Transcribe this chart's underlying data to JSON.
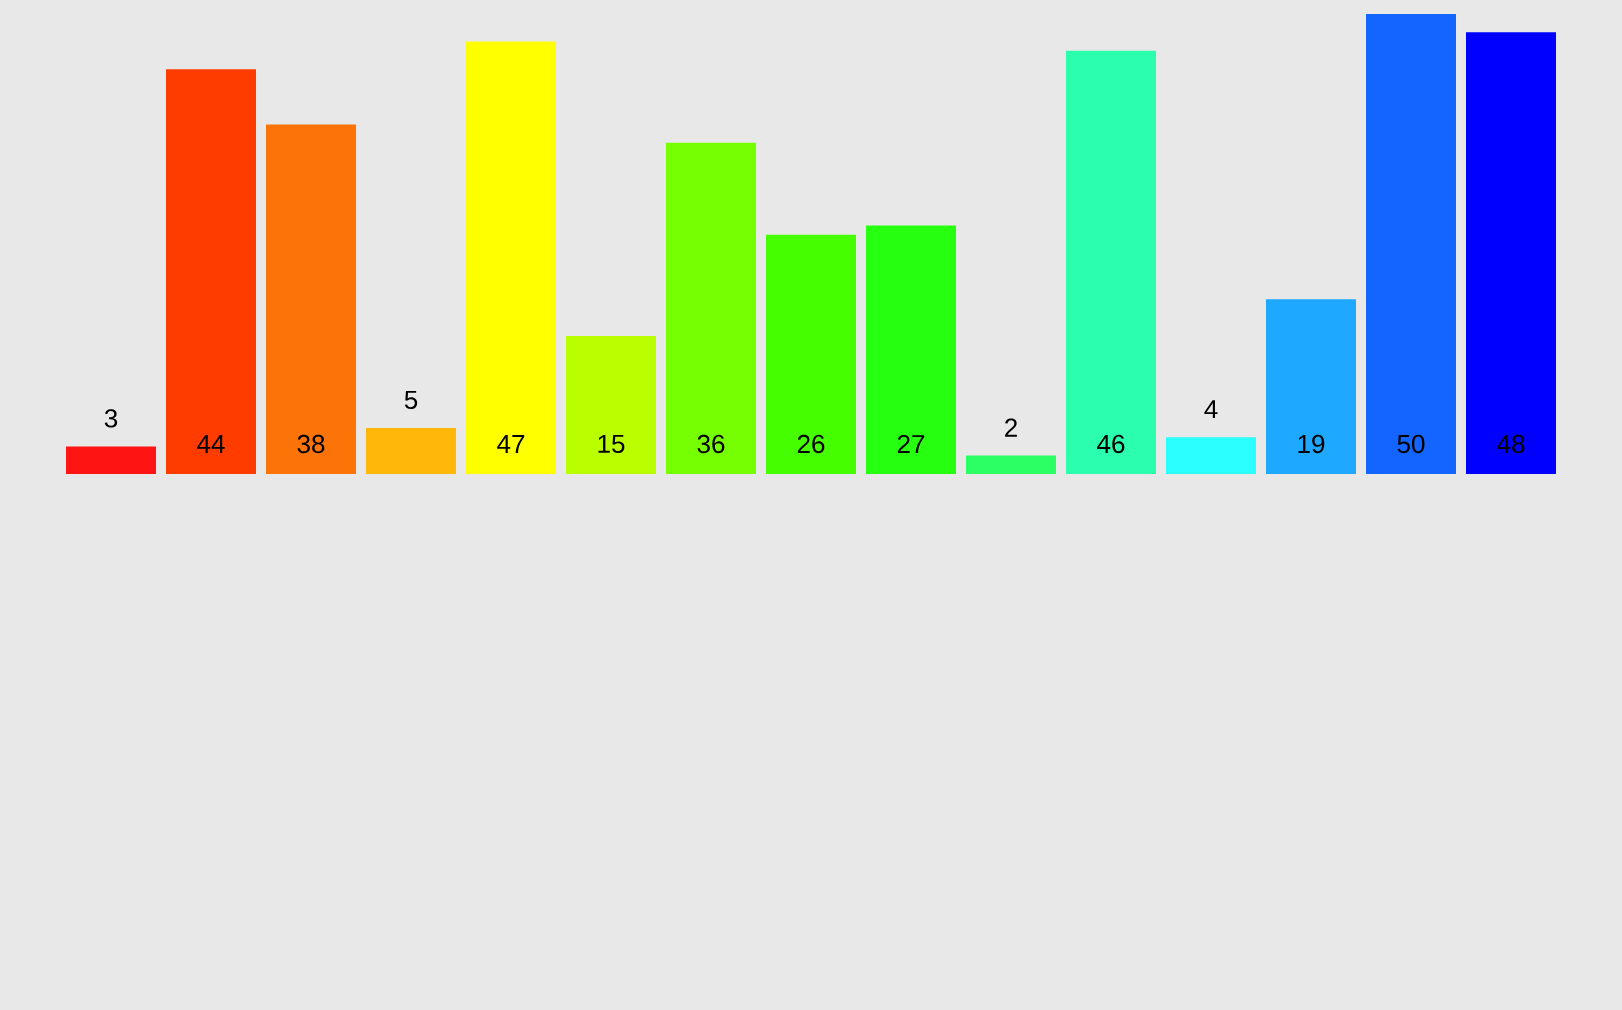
{
  "chart_data": {
    "type": "bar",
    "categories": [
      null,
      null,
      null,
      null,
      null,
      null,
      null,
      null,
      null,
      null,
      null,
      null,
      null,
      null,
      null
    ],
    "values": [
      3,
      44,
      38,
      5,
      47,
      15,
      36,
      26,
      27,
      2,
      46,
      4,
      19,
      50,
      48
    ],
    "colors": [
      "#ff1414",
      "#ff3c00",
      "#fc7308",
      "#ffb70a",
      "#ffff00",
      "#b9ff00",
      "#76ff00",
      "#45ff00",
      "#27ff10",
      "#2bff63",
      "#2bffad",
      "#2bffff",
      "#1ea8ff",
      "#1464ff",
      "#0000ff"
    ],
    "data_labels": true
  }
}
